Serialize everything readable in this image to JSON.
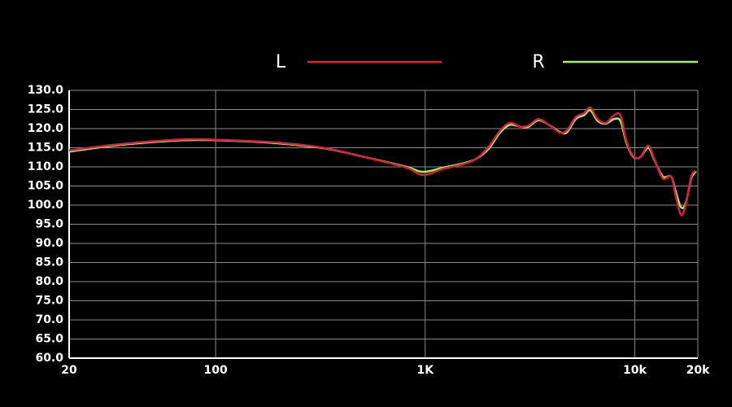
{
  "chart_data": {
    "type": "line",
    "xscale": "log",
    "xlim": [
      20,
      20000
    ],
    "ylim": [
      60,
      130
    ],
    "grid": true,
    "legend": "top-right",
    "xticks": [
      20,
      100,
      {
        "value": 1000,
        "label": "1K"
      },
      {
        "value": 10000,
        "label": "10k"
      },
      {
        "value": 20000,
        "label": "20k"
      }
    ],
    "yticks": [
      {
        "value": 130,
        "label": "130.0"
      },
      {
        "value": 125,
        "label": "125.0"
      },
      {
        "value": 120,
        "label": "120.0"
      },
      {
        "value": 115,
        "label": "115.0"
      },
      {
        "value": 110,
        "label": "110.0"
      },
      {
        "value": 105,
        "label": "105.0"
      },
      {
        "value": 100,
        "label": "100.0"
      },
      {
        "value": 95,
        "label": "95.0"
      },
      {
        "value": 90,
        "label": "90.0"
      },
      {
        "value": 85,
        "label": "85.0"
      },
      {
        "value": 80,
        "label": "80.0"
      },
      {
        "value": 75,
        "label": "75.0"
      },
      {
        "value": 70,
        "label": "70.0"
      },
      {
        "value": 65,
        "label": "65.0"
      },
      {
        "value": 60,
        "label": "60.0"
      }
    ],
    "x": [
      20,
      36,
      73,
      137,
      213,
      334,
      522,
      815,
      975,
      1220,
      1670,
      1990,
      2280,
      2540,
      2850,
      3110,
      3470,
      3890,
      4370,
      4740,
      5230,
      5720,
      6140,
      6650,
      7280,
      7960,
      8550,
      9100,
      9780,
      10600,
      11600,
      12400,
      13600,
      14900,
      15600,
      16600,
      17500,
      18600,
      19600
    ],
    "series": [
      {
        "name": "R",
        "color": "#a6f05a",
        "values": [
          114.0,
          115.8,
          117.0,
          116.7,
          116.0,
          114.8,
          112.5,
          110.0,
          108.7,
          109.8,
          111.6,
          114.5,
          119.0,
          121.0,
          120.5,
          120.5,
          122.2,
          121.0,
          119.2,
          119.0,
          122.5,
          123.5,
          124.8,
          122.0,
          121.3,
          122.5,
          122.0,
          116.5,
          112.8,
          112.5,
          115.0,
          111.8,
          107.5,
          107.5,
          104.0,
          99.5,
          100.5,
          107.0,
          108.8
        ]
      },
      {
        "name": "L",
        "color": "#d8203a",
        "values": [
          114.3,
          116.0,
          117.2,
          116.8,
          116.2,
          114.9,
          112.5,
          109.8,
          107.9,
          109.5,
          111.5,
          115.0,
          119.5,
          121.5,
          120.5,
          120.8,
          122.5,
          121.0,
          119.0,
          119.5,
          123.0,
          124.0,
          125.5,
          122.5,
          121.5,
          123.5,
          123.5,
          117.0,
          113.0,
          112.5,
          115.5,
          112.0,
          107.0,
          107.5,
          103.0,
          97.5,
          100.0,
          107.5,
          109.0
        ]
      }
    ]
  }
}
